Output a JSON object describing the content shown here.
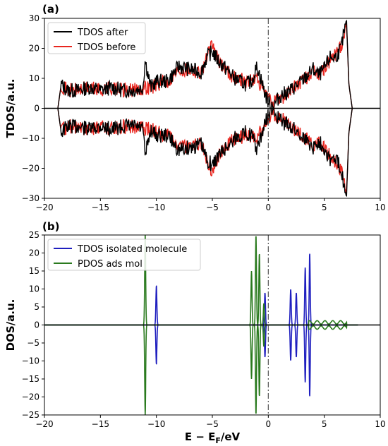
{
  "chart_data": [
    {
      "type": "line",
      "panel_label": "(a)",
      "ylabel": "TDOS/a.u.",
      "xlabel": "",
      "xlim": [
        -20,
        10
      ],
      "ylim": [
        -30,
        30
      ],
      "xticks": [
        -20,
        -15,
        -10,
        -5,
        0,
        5,
        10
      ],
      "yticks": [
        30,
        20,
        10,
        0,
        -10,
        -20,
        -30
      ],
      "xtick_labels": [
        "−20",
        "−15",
        "−10",
        "−5",
        "0",
        "5",
        "10"
      ],
      "ytick_labels": [
        "30",
        "20",
        "10",
        "0",
        "−10",
        "−20",
        "−30"
      ],
      "grid": false,
      "legend": "top-left",
      "fermi_line_x": 0,
      "series": [
        {
          "name": "TDOS after",
          "color": "#000000",
          "x": [
            -18.8,
            -18.5,
            -18,
            -17,
            -16,
            -15,
            -14,
            -13,
            -12,
            -11.2,
            -11,
            -10.5,
            -10,
            -9,
            -8,
            -7,
            -6,
            -5.5,
            -5,
            -4.5,
            -4,
            -3.5,
            -3,
            -2.5,
            -2,
            -1.5,
            -1,
            -0.6,
            -0.3,
            0,
            0.5,
            1,
            2,
            3,
            4,
            4.5,
            5,
            5.5,
            6,
            6.5,
            6.8,
            7,
            7.2,
            7.5
          ],
          "y": [
            0,
            8,
            6,
            6,
            7,
            6,
            7,
            6,
            6,
            7,
            16,
            7,
            9,
            9,
            14,
            13,
            12,
            17,
            19,
            16,
            14,
            12,
            10,
            9,
            8,
            9,
            14,
            9,
            5,
            2,
            1,
            4,
            6,
            9,
            13,
            11,
            13,
            17,
            17,
            20,
            26,
            28,
            8,
            0
          ]
        },
        {
          "name": "TDOS before",
          "color": "#e8261f",
          "x": [
            -18.8,
            -18.5,
            -18,
            -17,
            -16,
            -15,
            -14,
            -13,
            -12,
            -11,
            -10.5,
            -10,
            -9,
            -8,
            -7,
            -6,
            -5.5,
            -5,
            -4.5,
            -4,
            -3.5,
            -3,
            -2.5,
            -2,
            -1.5,
            -1,
            -0.6,
            -0.3,
            0,
            0.5,
            1,
            2,
            3,
            4,
            4.5,
            5,
            5.5,
            6,
            6.5,
            6.8,
            7,
            7.2,
            7.5
          ],
          "y": [
            0,
            8,
            6,
            6,
            7,
            6,
            7,
            6,
            6,
            7,
            7,
            8,
            9,
            13,
            13,
            12,
            17,
            21,
            16,
            14,
            12,
            10,
            10,
            9,
            9,
            10,
            7,
            5,
            3,
            2,
            3,
            6,
            9,
            12,
            11,
            13,
            16,
            18,
            21,
            25,
            28,
            8,
            0
          ]
        }
      ]
    },
    {
      "type": "line",
      "panel_label": "(b)",
      "ylabel": "DOS/a.u.",
      "xlabel": "E − E",
      "xlabel_sub": "F",
      "xlabel_unit": "/eV",
      "xlim": [
        -20,
        10
      ],
      "ylim": [
        -25,
        25
      ],
      "xticks": [
        -20,
        -15,
        -10,
        -5,
        0,
        5,
        10
      ],
      "yticks": [
        25,
        20,
        15,
        10,
        5,
        0,
        -5,
        -10,
        -15,
        -20,
        -25
      ],
      "xtick_labels": [
        "−20",
        "−15",
        "−10",
        "−5",
        "0",
        "5",
        "10"
      ],
      "ytick_labels": [
        "25",
        "20",
        "15",
        "10",
        "5",
        "0",
        "−5",
        "−10",
        "−15",
        "−20",
        "−25"
      ],
      "grid": false,
      "legend": "top-left",
      "fermi_line_x": 0,
      "series": [
        {
          "name": "TDOS isolated molecule",
          "color": "#1f1fbf",
          "peaks": [
            [
              -10.0,
              11
            ],
            [
              -0.3,
              9
            ],
            [
              2.0,
              10
            ],
            [
              2.5,
              9
            ],
            [
              3.3,
              16
            ],
            [
              3.7,
              20
            ]
          ]
        },
        {
          "name": "PDOS ads mol",
          "color": "#2a7a1e",
          "peaks": [
            [
              -11.0,
              25
            ],
            [
              -1.5,
              15
            ],
            [
              -1.1,
              25
            ],
            [
              -0.8,
              20
            ],
            [
              -0.4,
              6
            ]
          ],
          "tail_x": [
            3.6,
            7.0
          ],
          "tail_amp": 1.2
        }
      ]
    }
  ]
}
